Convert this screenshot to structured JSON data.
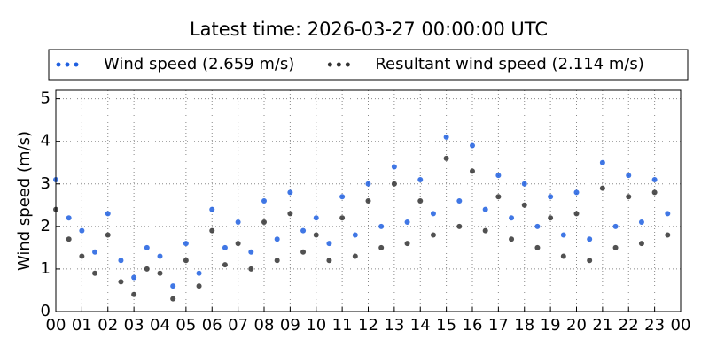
{
  "chart_data": {
    "type": "scatter",
    "title": "Latest time: 2026-03-27 00:00:00 UTC",
    "ylabel": "Wind speed (m/s)",
    "x": [
      0,
      0.5,
      1,
      1.5,
      2,
      2.5,
      3,
      3.5,
      4,
      4.5,
      5,
      5.5,
      6,
      6.5,
      7,
      7.5,
      8,
      8.5,
      9,
      9.5,
      10,
      10.5,
      11,
      11.5,
      12,
      12.5,
      13,
      13.5,
      14,
      14.5,
      15,
      15.5,
      16,
      16.5,
      17,
      17.5,
      18,
      18.5,
      19,
      19.5,
      20,
      20.5,
      21,
      21.5,
      22,
      22.5,
      23,
      23.5
    ],
    "series": [
      {
        "name": "Wind speed (2.659 m/s)",
        "color": "#1f5fe0",
        "values": [
          3.1,
          2.2,
          1.9,
          1.4,
          2.3,
          1.2,
          0.8,
          1.5,
          1.3,
          0.6,
          1.6,
          0.9,
          2.4,
          1.5,
          2.1,
          1.4,
          2.6,
          1.7,
          2.8,
          1.9,
          2.2,
          1.6,
          2.7,
          1.8,
          3.0,
          2.0,
          3.4,
          2.1,
          3.1,
          2.3,
          4.1,
          2.6,
          3.9,
          2.4,
          3.2,
          2.2,
          3.0,
          2.0,
          2.7,
          1.8,
          2.8,
          1.7,
          3.5,
          2.0,
          3.2,
          2.1,
          3.1,
          2.3
        ]
      },
      {
        "name": "Resultant wind speed (2.114 m/s)",
        "color": "#333333",
        "values": [
          2.4,
          1.7,
          1.3,
          0.9,
          1.8,
          0.7,
          0.4,
          1.0,
          0.9,
          0.3,
          1.2,
          0.6,
          1.9,
          1.1,
          1.6,
          1.0,
          2.1,
          1.2,
          2.3,
          1.4,
          1.8,
          1.2,
          2.2,
          1.3,
          2.6,
          1.5,
          3.0,
          1.6,
          2.6,
          1.8,
          3.6,
          2.0,
          3.3,
          1.9,
          2.7,
          1.7,
          2.5,
          1.5,
          2.2,
          1.3,
          2.3,
          1.2,
          2.9,
          1.5,
          2.7,
          1.6,
          2.8,
          1.8
        ]
      }
    ],
    "xlim": [
      0,
      24
    ],
    "xticks": [
      {
        "value": 0,
        "label": "00"
      },
      {
        "value": 1,
        "label": "01"
      },
      {
        "value": 2,
        "label": "02"
      },
      {
        "value": 3,
        "label": "03"
      },
      {
        "value": 4,
        "label": "04"
      },
      {
        "value": 5,
        "label": "05"
      },
      {
        "value": 6,
        "label": "06"
      },
      {
        "value": 7,
        "label": "07"
      },
      {
        "value": 8,
        "label": "08"
      },
      {
        "value": 9,
        "label": "09"
      },
      {
        "value": 10,
        "label": "10"
      },
      {
        "value": 11,
        "label": "11"
      },
      {
        "value": 12,
        "label": "12"
      },
      {
        "value": 13,
        "label": "13"
      },
      {
        "value": 14,
        "label": "14"
      },
      {
        "value": 15,
        "label": "15"
      },
      {
        "value": 16,
        "label": "16"
      },
      {
        "value": 17,
        "label": "17"
      },
      {
        "value": 18,
        "label": "18"
      },
      {
        "value": 19,
        "label": "19"
      },
      {
        "value": 20,
        "label": "20"
      },
      {
        "value": 21,
        "label": "21"
      },
      {
        "value": 22,
        "label": "22"
      },
      {
        "value": 23,
        "label": "23"
      },
      {
        "value": 24,
        "label": "00"
      }
    ],
    "ylim": [
      0,
      5.2
    ],
    "yticks": [
      0,
      1,
      2,
      3,
      4,
      5
    ],
    "grid": true
  }
}
